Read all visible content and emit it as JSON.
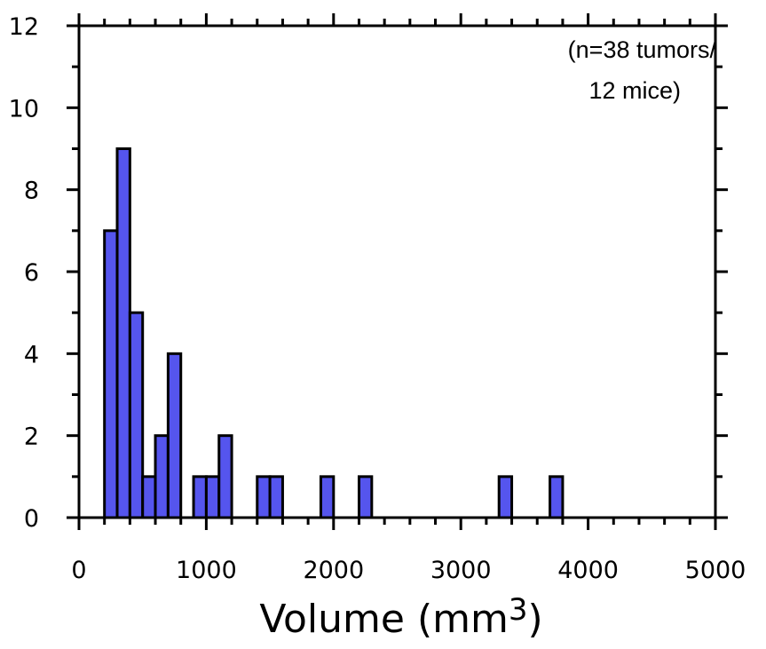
{
  "chart_data": {
    "type": "bar",
    "subtype": "histogram",
    "bin_width": 100,
    "bins": [
      {
        "x_start": 200,
        "x_end": 300,
        "count": 7
      },
      {
        "x_start": 300,
        "x_end": 400,
        "count": 9
      },
      {
        "x_start": 400,
        "x_end": 500,
        "count": 5
      },
      {
        "x_start": 500,
        "x_end": 600,
        "count": 1
      },
      {
        "x_start": 600,
        "x_end": 700,
        "count": 2
      },
      {
        "x_start": 700,
        "x_end": 800,
        "count": 4
      },
      {
        "x_start": 900,
        "x_end": 1000,
        "count": 1
      },
      {
        "x_start": 1000,
        "x_end": 1100,
        "count": 1
      },
      {
        "x_start": 1100,
        "x_end": 1200,
        "count": 2
      },
      {
        "x_start": 1400,
        "x_end": 1500,
        "count": 1
      },
      {
        "x_start": 1500,
        "x_end": 1600,
        "count": 1
      },
      {
        "x_start": 1900,
        "x_end": 2000,
        "count": 1
      },
      {
        "x_start": 2200,
        "x_end": 2300,
        "count": 1
      },
      {
        "x_start": 3300,
        "x_end": 3400,
        "count": 1
      },
      {
        "x_start": 3700,
        "x_end": 3800,
        "count": 1
      }
    ],
    "xlabel": "Volume (mm",
    "xlabel_superscript": "3",
    "xlabel_suffix": ")",
    "ylabel": "",
    "xlim": [
      0,
      5000
    ],
    "ylim": [
      0,
      12
    ],
    "x_ticks": [
      "0",
      "1000",
      "2000",
      "3000",
      "4000",
      "5000"
    ],
    "y_ticks": [
      "0",
      "2",
      "4",
      "6",
      "8",
      "10",
      "12"
    ],
    "annotation_line1": "(n=38 tumors/",
    "annotation_line2": "12 mice)",
    "bar_color": "#5555ee",
    "bar_edge_color": "#000000",
    "grid": false
  }
}
